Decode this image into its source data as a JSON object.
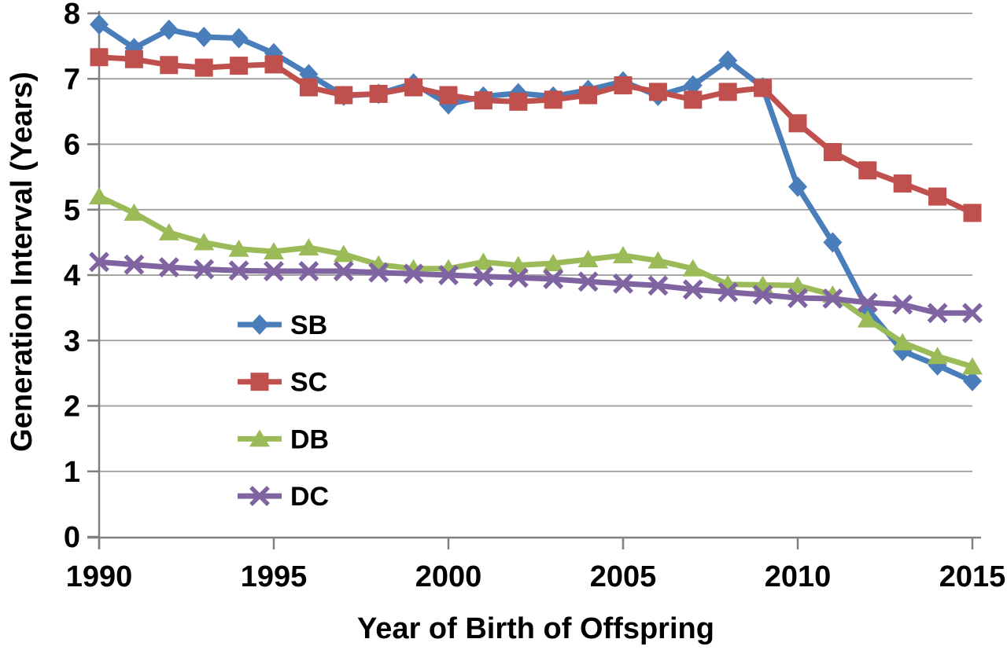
{
  "chart_data": {
    "type": "line",
    "title": "",
    "xlabel": "Year of Birth of Offspring",
    "ylabel": "Generation Interval (Years)",
    "xlim": [
      1990,
      2015
    ],
    "ylim": [
      0,
      8
    ],
    "x_ticks": [
      1990,
      1995,
      2000,
      2005,
      2010,
      2015
    ],
    "y_ticks": [
      0,
      1,
      2,
      3,
      4,
      5,
      6,
      7,
      8
    ],
    "grid": "horizontal",
    "legend_position": "inside-left-middle",
    "axis_color": "#808080",
    "grid_color": "#9a9a9a",
    "text_color": "#000000",
    "x": [
      1990,
      1991,
      1992,
      1993,
      1994,
      1995,
      1996,
      1997,
      1998,
      1999,
      2000,
      2001,
      2002,
      2003,
      2004,
      2005,
      2006,
      2007,
      2008,
      2009,
      2010,
      2011,
      2012,
      2013,
      2014,
      2015
    ],
    "series": [
      {
        "name": "SB",
        "marker": "diamond",
        "color": "#4a7ebb",
        "values": [
          7.83,
          7.47,
          7.75,
          7.64,
          7.62,
          7.39,
          7.07,
          6.74,
          6.77,
          6.93,
          6.61,
          6.73,
          6.78,
          6.73,
          6.83,
          6.96,
          6.74,
          6.9,
          7.28,
          6.87,
          5.35,
          4.5,
          3.48,
          2.84,
          2.62,
          2.38
        ]
      },
      {
        "name": "SC",
        "marker": "square",
        "color": "#c0504d",
        "values": [
          7.33,
          7.3,
          7.21,
          7.17,
          7.2,
          7.22,
          6.87,
          6.75,
          6.77,
          6.87,
          6.75,
          6.67,
          6.65,
          6.68,
          6.75,
          6.9,
          6.8,
          6.68,
          6.8,
          6.86,
          6.32,
          5.88,
          5.6,
          5.4,
          5.2,
          4.95
        ]
      },
      {
        "name": "DB",
        "marker": "triangle",
        "color": "#9bbb59",
        "values": [
          5.2,
          4.95,
          4.65,
          4.5,
          4.4,
          4.36,
          4.42,
          4.32,
          4.16,
          4.1,
          4.1,
          4.2,
          4.15,
          4.18,
          4.24,
          4.3,
          4.22,
          4.1,
          3.86,
          3.85,
          3.84,
          3.7,
          3.32,
          2.97,
          2.76,
          2.6
        ]
      },
      {
        "name": "DC",
        "marker": "x",
        "color": "#8064a2",
        "values": [
          4.2,
          4.16,
          4.12,
          4.09,
          4.07,
          4.06,
          4.06,
          4.06,
          4.04,
          4.02,
          4.0,
          3.98,
          3.96,
          3.94,
          3.9,
          3.87,
          3.84,
          3.78,
          3.74,
          3.7,
          3.65,
          3.64,
          3.58,
          3.55,
          3.42,
          3.42
        ]
      }
    ]
  }
}
